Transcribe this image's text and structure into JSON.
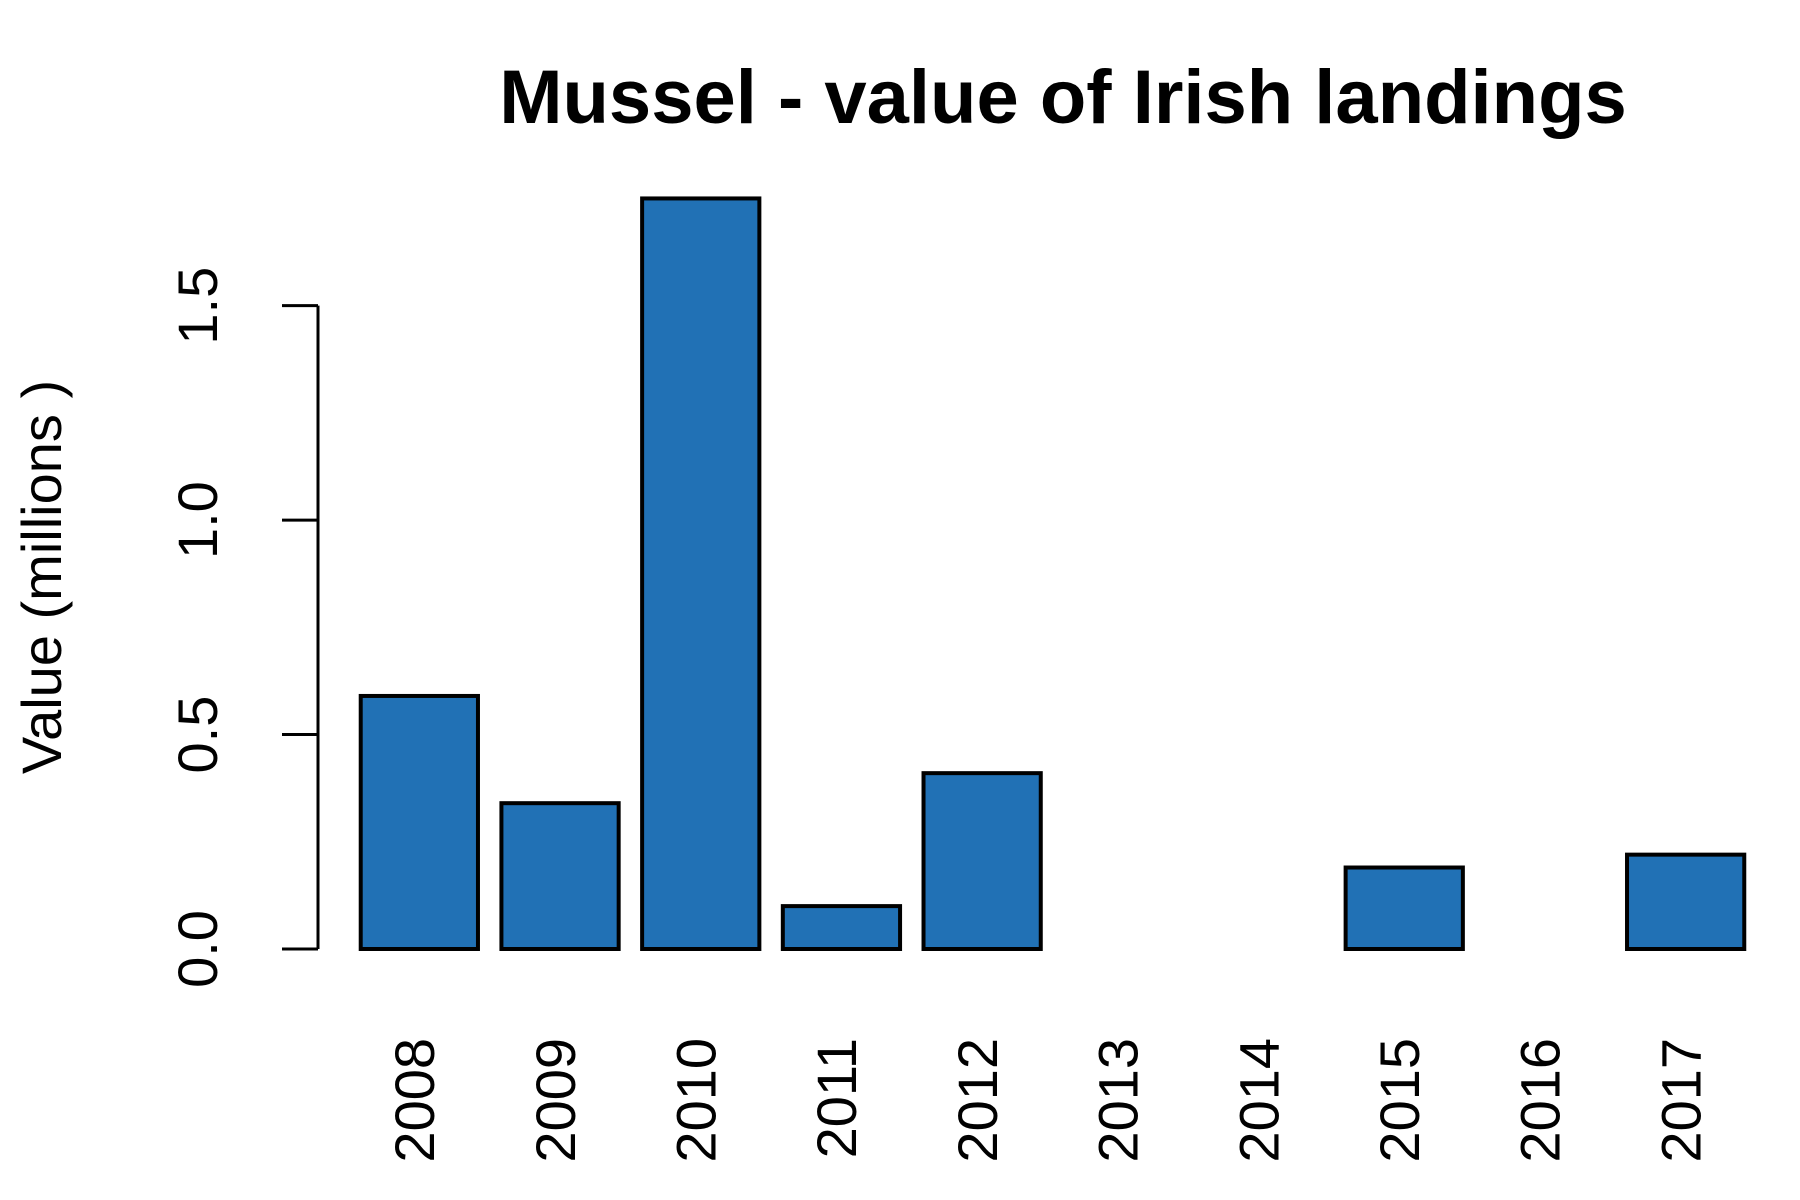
{
  "chart_data": {
    "type": "bar",
    "title": "Mussel - value of Irish landings",
    "y_label": "Value (millions )",
    "categories": [
      "2008",
      "2009",
      "2010",
      "2011",
      "2012",
      "2013",
      "2014",
      "2015",
      "2016",
      "2017"
    ],
    "values": [
      0.59,
      0.34,
      1.75,
      0.1,
      0.41,
      null,
      null,
      0.19,
      null,
      0.22
    ],
    "color": "#2171b5",
    "ylim": [
      0,
      1.8
    ],
    "yticks": [
      {
        "value": 0,
        "label": "0.0"
      },
      0.5,
      {
        "value": 1,
        "label": "1.0"
      },
      1.5
    ]
  }
}
